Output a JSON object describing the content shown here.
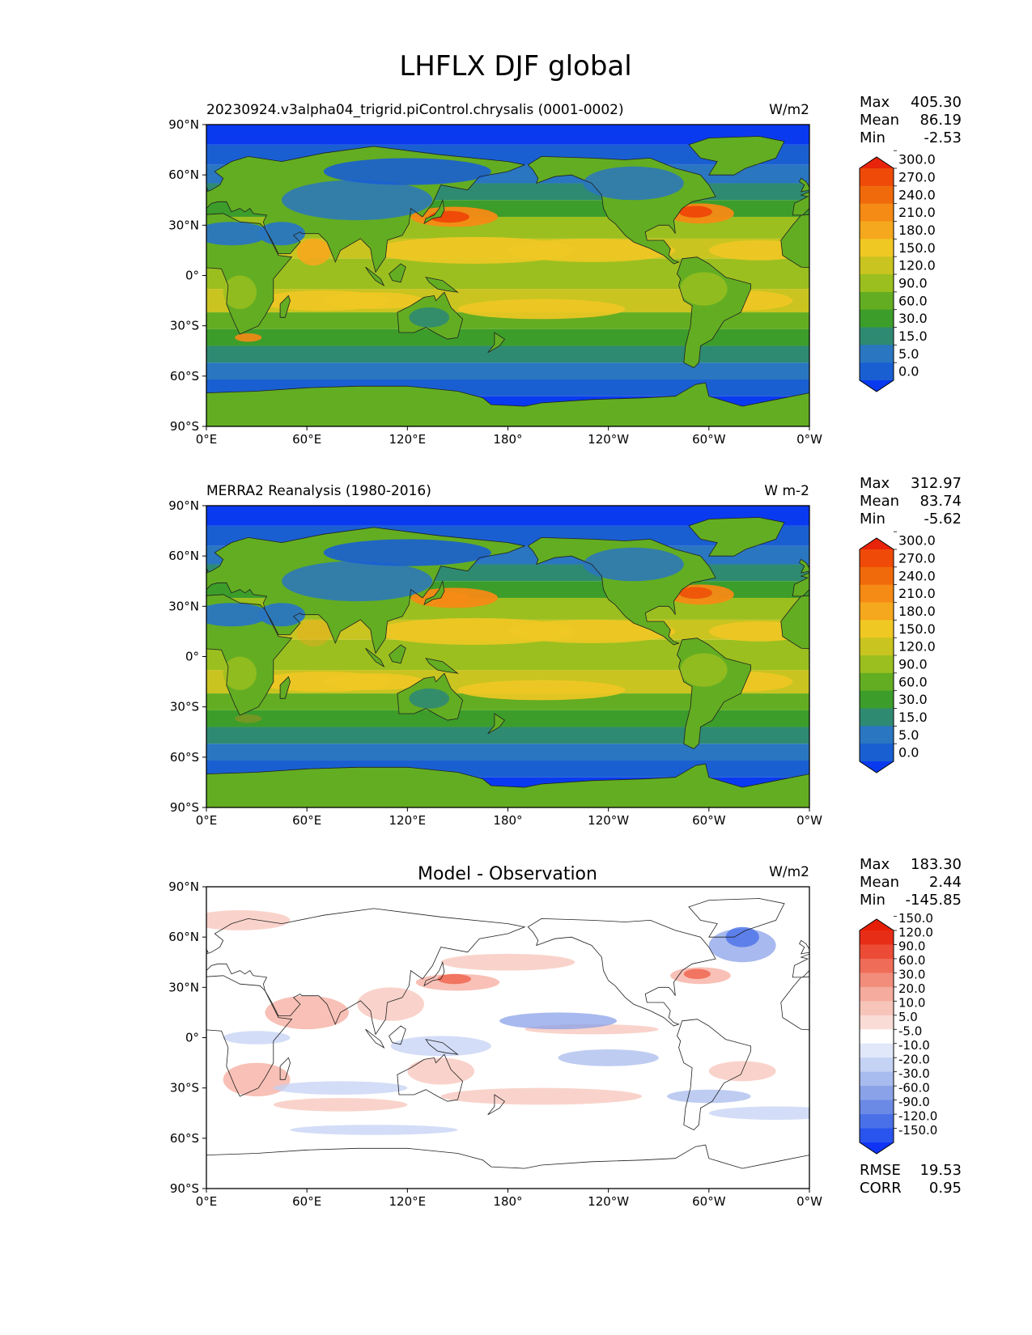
{
  "figure_title": "LHFLX DJF global",
  "axes": {
    "x_ticks": [
      "0°E",
      "60°E",
      "120°E",
      "180°",
      "120°W",
      "60°W",
      "0°W"
    ],
    "y_ticks": [
      "90°N",
      "60°N",
      "30°N",
      "0°",
      "30°S",
      "60°S",
      "90°S"
    ]
  },
  "chart_data": [
    {
      "type": "heatmap",
      "panel": "test",
      "title": "20230924.v3alpha04_trigrid.piControl.chrysalis (0001-0002)",
      "units": "W/m2",
      "xlim": [
        0,
        360
      ],
      "ylim": [
        -90,
        90
      ],
      "stats": {
        "Max": "405.30",
        "Mean": "86.19",
        "Min": "-2.53"
      },
      "colorbar": {
        "levels": [
          "0.0",
          "5.0",
          "15.0",
          "30.0",
          "60.0",
          "90.0",
          "120.0",
          "150.0",
          "180.0",
          "210.0",
          "240.0",
          "270.0",
          "300.0"
        ],
        "colors": [
          "#0a3af0",
          "#1a5fd2",
          "#2a76c0",
          "#2f8a72",
          "#3c9d2a",
          "#63ad22",
          "#9bbf1f",
          "#c9c420",
          "#f0c824",
          "#f5a81d",
          "#f58a14",
          "#f06a0c",
          "#ef4a08",
          "#e8240a"
        ],
        "extend": "both"
      }
    },
    {
      "type": "heatmap",
      "panel": "reference",
      "title": "MERRA2 Reanalysis (1980-2016)",
      "units": "W m-2",
      "xlim": [
        0,
        360
      ],
      "ylim": [
        -90,
        90
      ],
      "stats": {
        "Max": "312.97",
        "Mean": "83.74",
        "Min": "-5.62"
      },
      "colorbar": {
        "levels": [
          "0.0",
          "5.0",
          "15.0",
          "30.0",
          "60.0",
          "90.0",
          "120.0",
          "150.0",
          "180.0",
          "210.0",
          "240.0",
          "270.0",
          "300.0"
        ],
        "colors": [
          "#0a3af0",
          "#1a5fd2",
          "#2a76c0",
          "#2f8a72",
          "#3c9d2a",
          "#63ad22",
          "#9bbf1f",
          "#c9c420",
          "#f0c824",
          "#f5a81d",
          "#f58a14",
          "#f06a0c",
          "#ef4a08",
          "#e8240a"
        ],
        "extend": "both"
      }
    },
    {
      "type": "heatmap",
      "panel": "difference",
      "title": "Model - Observation",
      "units": "W/m2",
      "xlim": [
        0,
        360
      ],
      "ylim": [
        -90,
        90
      ],
      "stats": {
        "Max": "183.30",
        "Mean": "2.44",
        "Min": "-145.85"
      },
      "metrics": {
        "RMSE": "19.53",
        "CORR": "0.95"
      },
      "colorbar": {
        "levels": [
          "-150.0",
          "-120.0",
          "-90.0",
          "-60.0",
          "-30.0",
          "-20.0",
          "-10.0",
          "-5.0",
          "5.0",
          "10.0",
          "20.0",
          "30.0",
          "60.0",
          "90.0",
          "120.0",
          "150.0"
        ],
        "colors": [
          "#1034f5",
          "#2a54ee",
          "#4a70e8",
          "#6b8ae6",
          "#8aa2e8",
          "#a8bbee",
          "#c4d2f4",
          "#e0e8fa",
          "#ffffff",
          "#fadcd6",
          "#f7c4ba",
          "#f5ab9d",
          "#f28d7c",
          "#ef6d58",
          "#ec4c36",
          "#e82d17",
          "#e61e08"
        ],
        "extend": "both"
      }
    }
  ]
}
